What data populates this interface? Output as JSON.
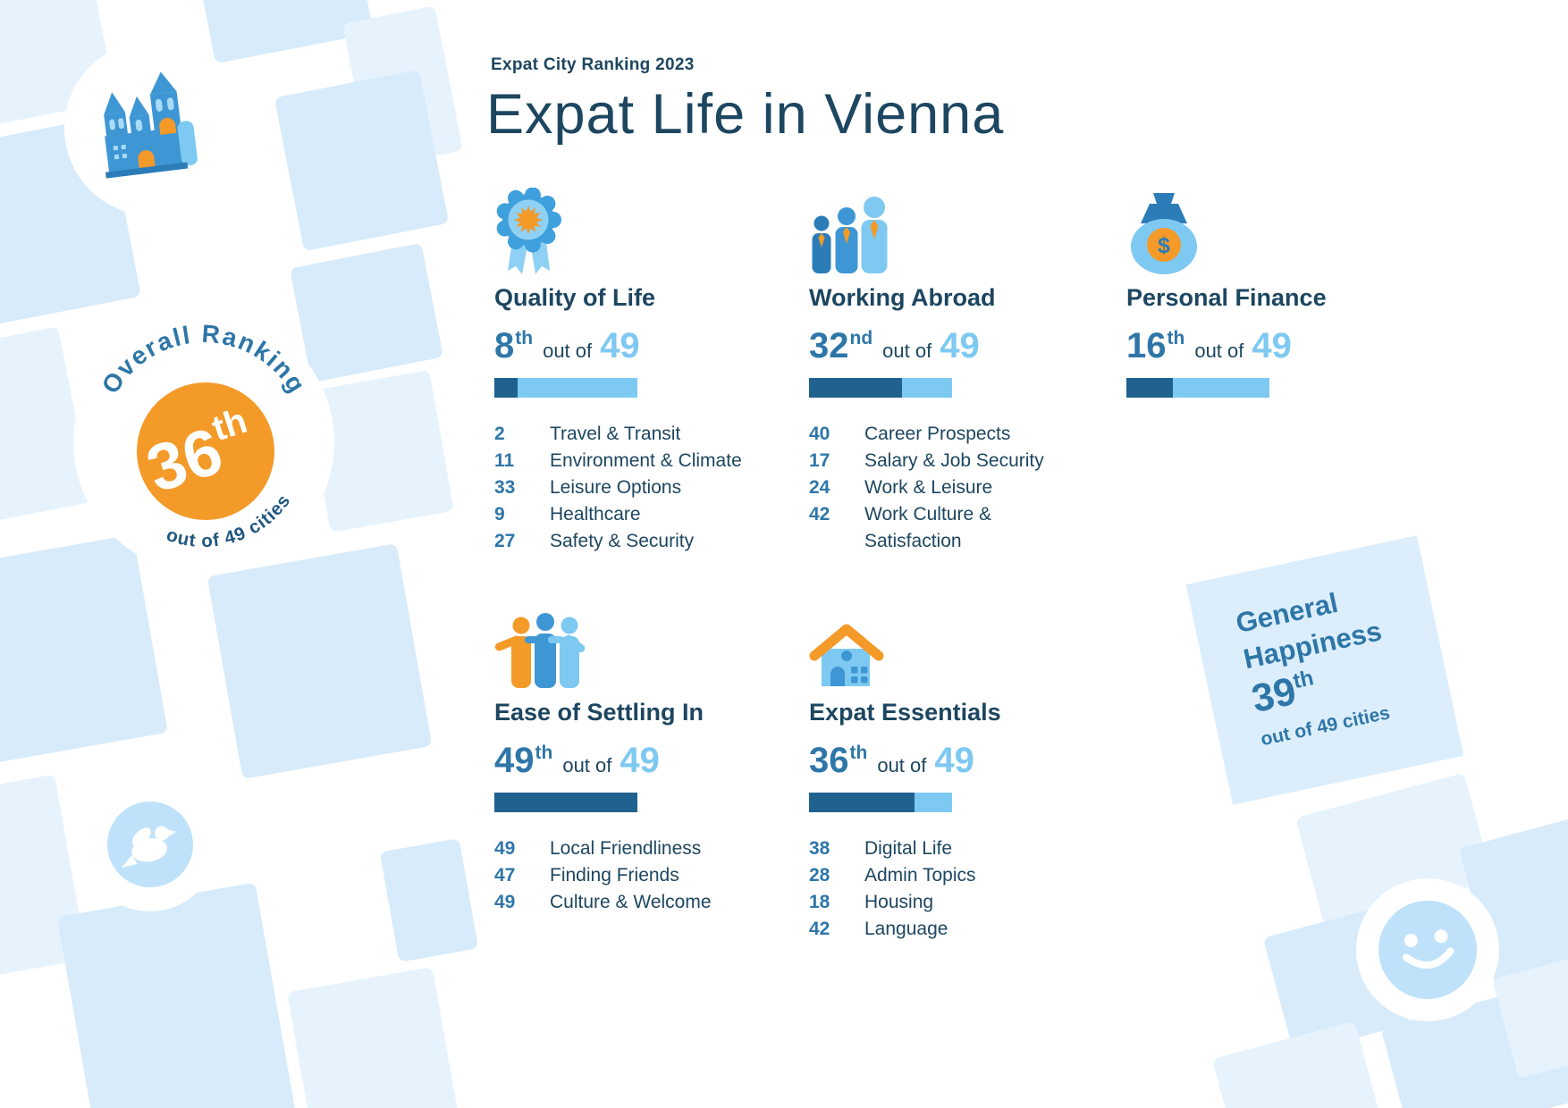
{
  "header": {
    "eyebrow": "Expat City Ranking 2023",
    "title": "Expat Life in Vienna"
  },
  "overall": {
    "arc_label": "Overall Ranking",
    "rank": "36",
    "ordinal": "th",
    "arc_suffix": "out of 49 cities"
  },
  "categories": [
    {
      "name": "Quality of Life",
      "icon": "rosette-award",
      "rank": "8",
      "ordinal": "th",
      "out_of": "out of",
      "total": "49",
      "percent": 16.3,
      "subs": [
        {
          "rank": "2",
          "label": "Travel & Transit"
        },
        {
          "rank": "11",
          "label": "Environment & Climate"
        },
        {
          "rank": "33",
          "label": "Leisure Options"
        },
        {
          "rank": "9",
          "label": "Healthcare"
        },
        {
          "rank": "27",
          "label": "Safety & Security"
        }
      ]
    },
    {
      "name": "Working Abroad",
      "icon": "business-people",
      "rank": "32",
      "ordinal": "nd",
      "out_of": "out of",
      "total": "49",
      "percent": 65.3,
      "subs": [
        {
          "rank": "40",
          "label": "Career Prospects"
        },
        {
          "rank": "17",
          "label": "Salary & Job Security"
        },
        {
          "rank": "24",
          "label": "Work & Leisure"
        },
        {
          "rank": "42",
          "label": "Work Culture & Satisfaction"
        }
      ]
    },
    {
      "name": "Personal Finance",
      "icon": "money-bag",
      "rank": "16",
      "ordinal": "th",
      "out_of": "out of",
      "total": "49",
      "percent": 32.7,
      "subs": []
    },
    {
      "name": "Ease of Settling In",
      "icon": "friends-hugging",
      "rank": "49",
      "ordinal": "th",
      "out_of": "out of",
      "total": "49",
      "percent": 100,
      "subs": [
        {
          "rank": "49",
          "label": "Local Friendliness"
        },
        {
          "rank": "47",
          "label": "Finding Friends"
        },
        {
          "rank": "49",
          "label": "Culture & Welcome"
        }
      ]
    },
    {
      "name": "Expat Essentials",
      "icon": "house",
      "rank": "36",
      "ordinal": "th",
      "out_of": "out of",
      "total": "49",
      "percent": 73.5,
      "subs": [
        {
          "rank": "38",
          "label": "Digital Life"
        },
        {
          "rank": "28",
          "label": "Admin Topics"
        },
        {
          "rank": "18",
          "label": "Housing"
        },
        {
          "rank": "42",
          "label": "Language"
        }
      ]
    }
  ],
  "general_happiness": {
    "line1": "General",
    "line2": "Happiness",
    "rank": "39",
    "ordinal": "th",
    "suffix": "out of 49 cities"
  },
  "icons": {
    "quality_of_life": "rosette-award",
    "working_abroad": "business-people",
    "personal_finance": "money-bag",
    "ease_of_settling_in": "friends-hugging",
    "expat_essentials": "house",
    "decorative": [
      "castle",
      "dove-bird",
      "smiley-face",
      "map-roundabouts"
    ],
    "dollar": "$"
  },
  "colors": {
    "navy": "#1d4660",
    "blue": "#2e76a8",
    "light_blue": "#7ec9f2",
    "bar_dark": "#1f618f",
    "orange": "#f49a28",
    "map_block": "#d7ebfa",
    "map_block_light": "#e6f3fd",
    "happiness_card": "#dceefc"
  },
  "chart_data": {
    "type": "bar",
    "title": "Expat Life in Vienna",
    "subtitle": "Expat City Ranking 2023",
    "total_cities": 49,
    "overall_rank": 36,
    "general_happiness_rank": 39,
    "categories": [
      "Quality of Life",
      "Working Abroad",
      "Personal Finance",
      "Ease of Settling In",
      "Expat Essentials"
    ],
    "values": [
      8,
      32,
      16,
      49,
      36
    ],
    "bar_note": "bar fill = rank / 49",
    "subcategory_ranks": {
      "Quality of Life": {
        "Travel & Transit": 2,
        "Environment & Climate": 11,
        "Leisure Options": 33,
        "Healthcare": 9,
        "Safety & Security": 27
      },
      "Working Abroad": {
        "Career Prospects": 40,
        "Salary & Job Security": 17,
        "Work & Leisure": 24,
        "Work Culture & Satisfaction": 42
      },
      "Ease of Settling In": {
        "Local Friendliness": 49,
        "Finding Friends": 47,
        "Culture & Welcome": 49
      },
      "Expat Essentials": {
        "Digital Life": 38,
        "Admin Topics": 28,
        "Housing": 18,
        "Language": 42
      }
    }
  }
}
